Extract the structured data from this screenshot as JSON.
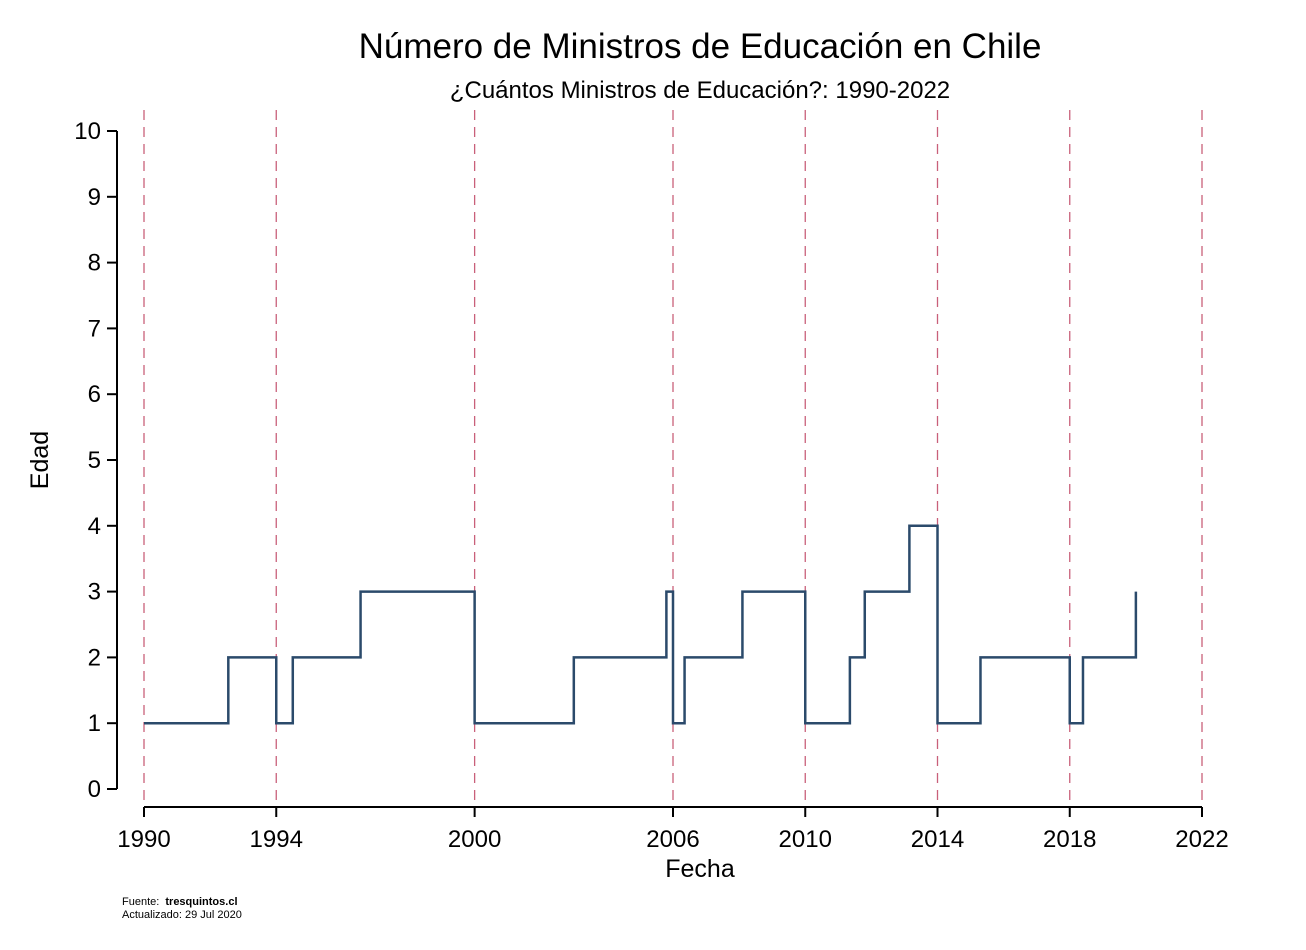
{
  "chart_data": {
    "type": "line",
    "step": true,
    "title": "Número de Ministros de Educación en Chile",
    "subtitle": "¿Cuántos Ministros de Educación?: 1990-2022",
    "xlabel": "Fecha",
    "ylabel": "Edad",
    "xlim": [
      1990,
      2022
    ],
    "ylim": [
      0,
      10
    ],
    "x_ticks": [
      1990,
      1994,
      2000,
      2006,
      2010,
      2014,
      2018,
      2022
    ],
    "y_ticks": [
      0,
      1,
      2,
      3,
      4,
      5,
      6,
      7,
      8,
      9,
      10
    ],
    "reference_lines_x": [
      1990,
      1994,
      2000,
      2006,
      2010,
      2014,
      2018,
      2022
    ],
    "grid": false,
    "legend": "none",
    "colors": {
      "series": "#2b4a6b",
      "reference_lines": "#c9607a",
      "axes": "#000000"
    },
    "series": [
      {
        "points": [
          [
            1990.0,
            1
          ],
          [
            1992.55,
            1
          ],
          [
            1992.55,
            2
          ],
          [
            1994.0,
            2
          ],
          [
            1994.0,
            1
          ],
          [
            1994.5,
            1
          ],
          [
            1994.5,
            2
          ],
          [
            1996.55,
            2
          ],
          [
            1996.55,
            3
          ],
          [
            2000.0,
            3
          ],
          [
            2000.0,
            1
          ],
          [
            2003.0,
            1
          ],
          [
            2003.0,
            2
          ],
          [
            2005.8,
            2
          ],
          [
            2005.8,
            3
          ],
          [
            2006.0,
            3
          ],
          [
            2006.0,
            1
          ],
          [
            2006.35,
            1
          ],
          [
            2006.35,
            2
          ],
          [
            2008.1,
            2
          ],
          [
            2008.1,
            3
          ],
          [
            2010.0,
            3
          ],
          [
            2010.0,
            1
          ],
          [
            2011.35,
            1
          ],
          [
            2011.35,
            2
          ],
          [
            2011.8,
            2
          ],
          [
            2011.8,
            3
          ],
          [
            2013.15,
            3
          ],
          [
            2013.15,
            4
          ],
          [
            2014.0,
            4
          ],
          [
            2014.0,
            1
          ],
          [
            2015.3,
            1
          ],
          [
            2015.3,
            2
          ],
          [
            2018.0,
            2
          ],
          [
            2018.0,
            1
          ],
          [
            2018.4,
            1
          ],
          [
            2018.4,
            2
          ],
          [
            2020.0,
            2
          ],
          [
            2020.0,
            3
          ]
        ]
      }
    ]
  },
  "source": {
    "label": "Fuente:",
    "value": "tresquintos.cl",
    "updated": "Actualizado: 29 Jul 2020"
  }
}
